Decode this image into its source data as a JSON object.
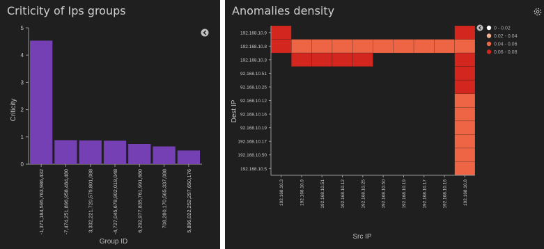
{
  "colors": {
    "panel_bg": "#1f1f1f",
    "bar": "#7440b3",
    "axis": "#9a9a9a",
    "text": "#c8c8c8",
    "legend_knob": "#bfbfbf",
    "heat_0": "#ffffff",
    "heat_1": "#f6b393",
    "heat_2": "#ee6545",
    "heat_3": "#d3261f"
  },
  "left_panel": {
    "title": "Criticity of Ips groups",
    "legend_toggle_icon": "chevron-circle-icon"
  },
  "right_panel": {
    "title": "Anomalies density",
    "settings_icon": "gear-icon",
    "legend_toggle_icon": "chevron-circle-icon"
  },
  "chart_data": [
    {
      "type": "bar",
      "title": "Criticity of Ips groups",
      "xlabel": "Group ID",
      "ylabel": "Criticity",
      "ylim": [
        0,
        5
      ],
      "yticks": [
        0,
        1,
        2,
        3,
        4,
        5
      ],
      "grid": false,
      "categories": [
        "-1,371,184,595,763,986,432",
        "-7,474,251,896,958,484,480",
        "3,332,221,720,579,801,088",
        "-4,727,045,678,902,018,048",
        "6,292,977,835,761,991,680",
        "708,280,170,565,337,088",
        "5,896,022,252,297,650,176"
      ],
      "values": [
        4.53,
        0.88,
        0.87,
        0.86,
        0.74,
        0.65,
        0.5
      ]
    },
    {
      "type": "heatmap",
      "title": "Anomalies density",
      "xlabel": "Src IP",
      "ylabel": "Dest IP",
      "legend_position": "top-right",
      "x": [
        "192.168.10.3",
        "192.168.10.9",
        "192.168.10.51",
        "192.168.10.12",
        "192.168.10.25",
        "192.168.10.50",
        "192.168.10.19",
        "192.168.10.17",
        "192.168.10.16",
        "192.168.10.8"
      ],
      "y": [
        "192.168.10.9",
        "192.168.10.8",
        "192.168.10.3",
        "92.168.10.51",
        "92.168.10.25",
        "92.168.10.12",
        "92.168.10.16",
        "92.168.10.19",
        "192.168.10.17",
        "192.168.10.50",
        "192.168.10.5"
      ],
      "legend": [
        {
          "label": "0 - 0.02",
          "level": 0
        },
        {
          "label": "0.02 - 0.04",
          "level": 1
        },
        {
          "label": "0.04 - 0.06",
          "level": 2
        },
        {
          "label": "0.06 - 0.08",
          "level": 3
        }
      ],
      "cells": [
        [
          0,
          0,
          3
        ],
        [
          0,
          9,
          3
        ],
        [
          1,
          0,
          3
        ],
        [
          1,
          1,
          2
        ],
        [
          1,
          2,
          2
        ],
        [
          1,
          3,
          2
        ],
        [
          1,
          4,
          2
        ],
        [
          1,
          5,
          2
        ],
        [
          1,
          6,
          2
        ],
        [
          1,
          7,
          2
        ],
        [
          1,
          8,
          2
        ],
        [
          1,
          9,
          2
        ],
        [
          2,
          1,
          3
        ],
        [
          2,
          2,
          3
        ],
        [
          2,
          3,
          3
        ],
        [
          2,
          4,
          3
        ],
        [
          2,
          9,
          3
        ],
        [
          3,
          9,
          3
        ],
        [
          4,
          9,
          3
        ],
        [
          5,
          9,
          2
        ],
        [
          6,
          9,
          2
        ],
        [
          7,
          9,
          2
        ],
        [
          8,
          9,
          2
        ],
        [
          9,
          9,
          2
        ],
        [
          10,
          9,
          2
        ]
      ]
    }
  ]
}
